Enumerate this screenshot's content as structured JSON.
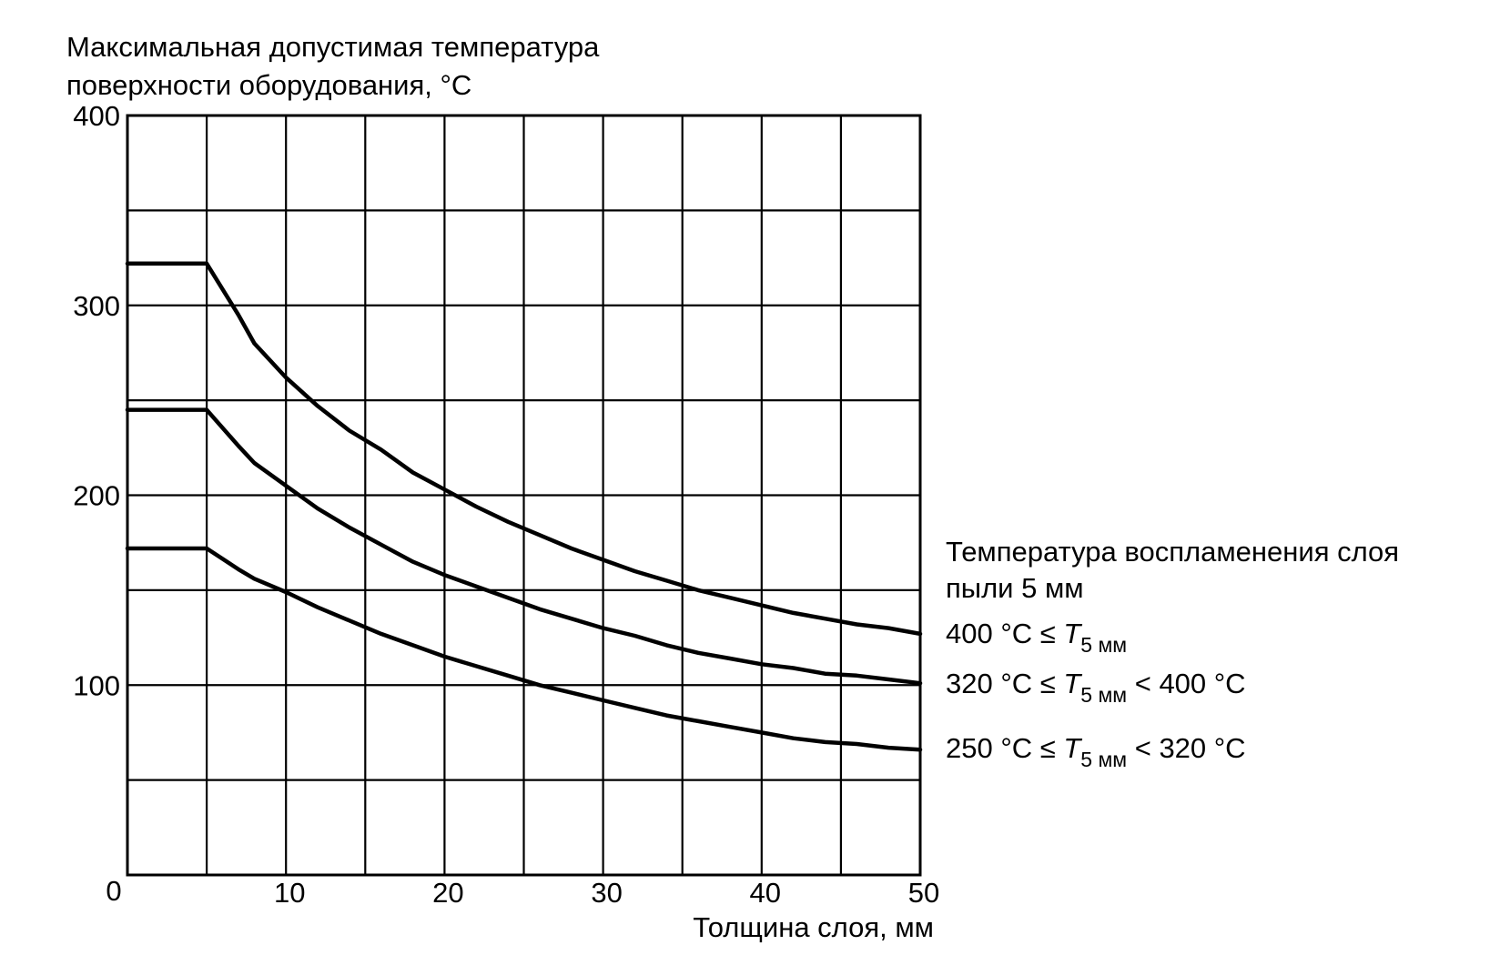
{
  "chart_data": {
    "type": "line",
    "ylabel_lines": [
      "Максимальная допустимая температура",
      "поверхности оборудования, °C"
    ],
    "xlabel": "Толщина слоя, мм",
    "xlim": [
      0,
      50
    ],
    "ylim": [
      0,
      400
    ],
    "x_ticks": [
      10,
      20,
      30,
      40,
      50
    ],
    "x_tick_labels": [
      "10",
      "20",
      "30",
      "40",
      "50"
    ],
    "y_ticks": [
      100,
      200,
      300,
      400
    ],
    "y_tick_labels": [
      "100",
      "200",
      "300",
      "400"
    ],
    "origin_label": "0",
    "x_grid": [
      0,
      5,
      10,
      15,
      20,
      25,
      30,
      35,
      40,
      45,
      50
    ],
    "y_grid": [
      0,
      50,
      100,
      150,
      200,
      250,
      300,
      350,
      400
    ],
    "grid": true,
    "legend_title_lines": [
      "Температура воспламенения слоя",
      "пыли 5 мм"
    ],
    "legend_placement": "right",
    "series": [
      {
        "name": "400 °C ≤ T5 мм",
        "label": {
          "prefix": "400 °C ≤ ",
          "var": "T",
          "sub": "5 мм",
          "suffix": ""
        },
        "x": [
          0,
          5,
          7,
          8,
          10,
          12,
          14,
          16,
          18,
          20,
          22,
          24,
          26,
          28,
          30,
          32,
          34,
          36,
          38,
          40,
          42,
          44,
          46,
          48,
          50
        ],
        "y": [
          322,
          322,
          295,
          280,
          262,
          247,
          234,
          224,
          212,
          203,
          194,
          186,
          179,
          172,
          166,
          160,
          155,
          150,
          146,
          142,
          138,
          135,
          132,
          130,
          127
        ]
      },
      {
        "name": "320 °C ≤ T5 мм < 400 °C",
        "label": {
          "prefix": "320 °C ≤ ",
          "var": "T",
          "sub": "5 мм",
          "suffix": " < 400 °C"
        },
        "x": [
          0,
          5,
          7,
          8,
          10,
          12,
          14,
          16,
          18,
          20,
          22,
          24,
          26,
          28,
          30,
          32,
          34,
          36,
          38,
          40,
          42,
          44,
          46,
          48,
          50
        ],
        "y": [
          245,
          245,
          226,
          217,
          205,
          193,
          183,
          174,
          165,
          158,
          152,
          146,
          140,
          135,
          130,
          126,
          121,
          117,
          114,
          111,
          109,
          106,
          105,
          103,
          101
        ]
      },
      {
        "name": "250 °C ≤ T5 мм < 320 °C",
        "label": {
          "prefix": "250 °C ≤ ",
          "var": "T",
          "sub": "5 мм",
          "suffix": " < 320 °C"
        },
        "x": [
          0,
          5,
          7,
          8,
          10,
          12,
          14,
          16,
          18,
          20,
          22,
          24,
          26,
          28,
          30,
          32,
          34,
          36,
          38,
          40,
          42,
          44,
          46,
          48,
          50
        ],
        "y": [
          172,
          172,
          161,
          156,
          149,
          141,
          134,
          127,
          121,
          115,
          110,
          105,
          100,
          96,
          92,
          88,
          84,
          81,
          78,
          75,
          72,
          70,
          69,
          67,
          66
        ]
      }
    ]
  }
}
